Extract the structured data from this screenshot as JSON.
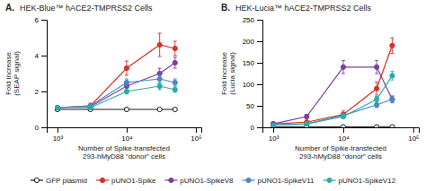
{
  "chart_data": [
    {
      "type": "line",
      "title": "HEK-Blue™ hACE2-TMPRSS2 Cells",
      "annotations": [
        "A."
      ],
      "xlabel": "Number of Spike-transfected\n293-hMyD88 “donor” cells",
      "ylabel": "Fold increase\n(SEAP signal)",
      "x": [
        1000,
        3000,
        10000,
        30000,
        50000
      ],
      "log": "x",
      "xlim": [
        700,
        120000
      ],
      "xticks": [
        {
          "value": 1000,
          "label": "10³"
        },
        {
          "value": 10000,
          "label": "10⁴"
        },
        {
          "value": 100000,
          "label": "10⁵"
        }
      ],
      "ylim": [
        0,
        6
      ],
      "yticks": [
        0,
        2,
        4,
        6
      ],
      "grid": false,
      "legend": "bottom",
      "series": [
        {
          "name": "GFP plasmid",
          "color": "#1a1a1a",
          "marker": "circle-open",
          "values": [
            1.0,
            1.0,
            1.0,
            1.0,
            1.0
          ],
          "errors": [
            0.04,
            0.04,
            0.04,
            0.04,
            0.04
          ]
        },
        {
          "name": "pUNO1-Spike",
          "color": "#d93025",
          "marker": "circle",
          "values": [
            1.1,
            1.2,
            3.3,
            4.6,
            4.4
          ],
          "errors": [
            0.1,
            0.15,
            0.4,
            0.65,
            0.4
          ]
        },
        {
          "name": "pUNO1-SpikeV8",
          "color": "#7b3f9e",
          "marker": "circle",
          "values": [
            1.1,
            1.15,
            2.3,
            3.0,
            3.6
          ],
          "errors": [
            0.08,
            0.1,
            0.2,
            0.3,
            0.3
          ]
        },
        {
          "name": "pUNO1-SpikeV11",
          "color": "#4a86c8",
          "marker": "circle",
          "values": [
            1.1,
            1.2,
            2.5,
            2.7,
            2.5
          ],
          "errors": [
            0.08,
            0.1,
            0.2,
            0.25,
            0.2
          ]
        },
        {
          "name": "pUNO1-SpikeV12",
          "color": "#2aada8",
          "marker": "circle",
          "values": [
            1.1,
            1.1,
            2.0,
            2.3,
            2.1
          ],
          "errors": [
            0.08,
            0.1,
            0.15,
            0.2,
            0.15
          ]
        }
      ]
    },
    {
      "type": "line",
      "title": "HEK-Lucia™ hACE2-TMPRSS2 Cells",
      "annotations": [
        "B."
      ],
      "xlabel": "Number of Spike-transfected\n293-hMyD88 “donor” cells",
      "ylabel": "Fold increase\n(Lucia signal)",
      "x": [
        1000,
        3000,
        10000,
        30000,
        50000
      ],
      "log": "x",
      "xlim": [
        700,
        120000
      ],
      "xticks": [
        {
          "value": 1000,
          "label": "10³"
        },
        {
          "value": 10000,
          "label": "10⁴"
        },
        {
          "value": 100000,
          "label": "10⁵"
        }
      ],
      "ylim": [
        0,
        250
      ],
      "yticks": [
        0,
        50,
        100,
        150,
        200,
        250
      ],
      "grid": false,
      "series": [
        {
          "name": "GFP plasmid",
          "color": "#1a1a1a",
          "marker": "circle-open",
          "values": [
            1,
            1,
            1,
            1,
            1
          ],
          "errors": [
            0.3,
            0.3,
            0.3,
            0.3,
            0.3
          ]
        },
        {
          "name": "pUNO1-Spike",
          "color": "#d93025",
          "marker": "circle",
          "values": [
            8,
            12,
            30,
            90,
            190
          ],
          "errors": [
            2,
            4,
            8,
            15,
            18
          ]
        },
        {
          "name": "pUNO1-SpikeV8",
          "color": "#7b3f9e",
          "marker": "circle",
          "values": [
            8,
            25,
            140,
            140,
            65
          ],
          "errors": [
            2,
            5,
            15,
            15,
            8
          ]
        },
        {
          "name": "pUNO1-SpikeV11",
          "color": "#4a86c8",
          "marker": "circle",
          "values": [
            5,
            8,
            28,
            52,
            65
          ],
          "errors": [
            1,
            2,
            4,
            6,
            7
          ]
        },
        {
          "name": "pUNO1-SpikeV12",
          "color": "#2aada8",
          "marker": "circle",
          "values": [
            5,
            8,
            25,
            65,
            120
          ],
          "errors": [
            1,
            2,
            4,
            7,
            10
          ]
        }
      ]
    }
  ]
}
